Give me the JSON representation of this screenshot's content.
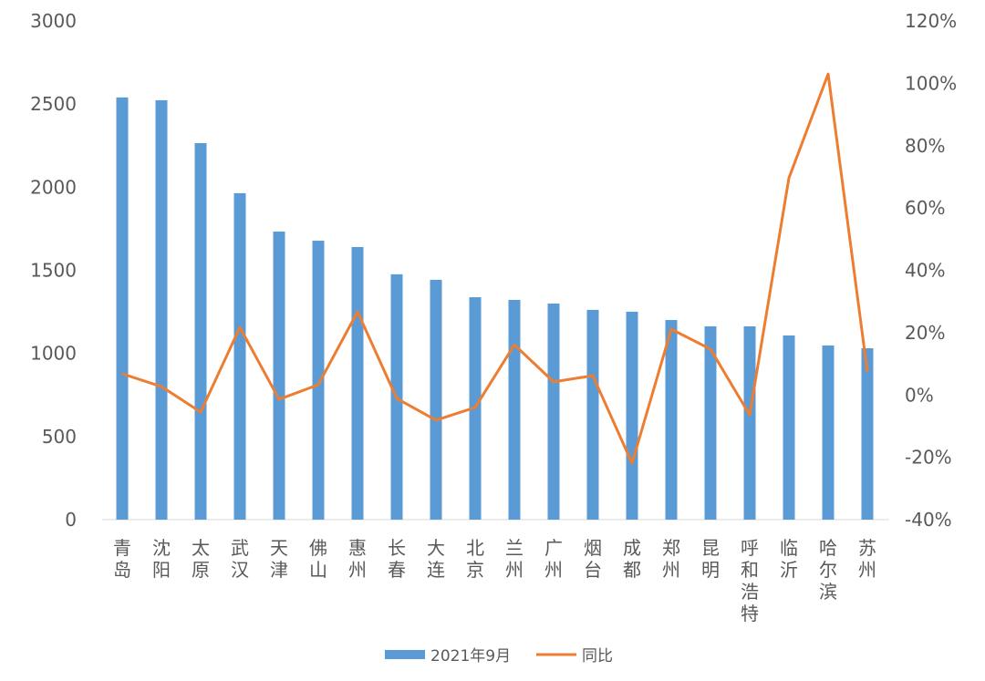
{
  "chart_data": {
    "type": "bar+line",
    "categories": [
      "青岛",
      "沈阳",
      "太原",
      "武汉",
      "天津",
      "佛山",
      "惠州",
      "长春",
      "大连",
      "北京",
      "兰州",
      "广州",
      "烟台",
      "成都",
      "郑州",
      "昆明",
      "呼和浩特",
      "临沂",
      "哈尔滨",
      "苏州"
    ],
    "series": [
      {
        "name": "2021年9月",
        "type": "bar",
        "axis": "left",
        "color": "#5b9bd5",
        "values": [
          2540,
          2523,
          2265,
          1964,
          1733,
          1678,
          1640,
          1476,
          1443,
          1338,
          1322,
          1300,
          1262,
          1251,
          1201,
          1163,
          1163,
          1108,
          1048,
          1031
        ]
      },
      {
        "name": "同比",
        "type": "line",
        "axis": "right",
        "color": "#ed7d31",
        "values": [
          6.8,
          2.7,
          -5.5,
          21.7,
          -1.4,
          3.3,
          26.7,
          -1.1,
          -8.1,
          -4.0,
          16.1,
          4.2,
          6.2,
          -21.9,
          21.1,
          14.7,
          -6.4,
          69.6,
          103,
          7.4
        ]
      }
    ],
    "y_left": {
      "range": [
        0,
        3000
      ],
      "ticks": [
        "0",
        "500",
        "1000",
        "1500",
        "2000",
        "2500",
        "3000"
      ]
    },
    "y_right": {
      "range": [
        -40,
        120
      ],
      "unit": "%",
      "ticks": [
        "-40%",
        "-20%",
        "0%",
        "20%",
        "40%",
        "60%",
        "80%",
        "100%",
        "120%"
      ]
    },
    "grid": false,
    "legend": {
      "placement": "bottom",
      "items": [
        "2021年9月",
        "同比"
      ]
    }
  }
}
